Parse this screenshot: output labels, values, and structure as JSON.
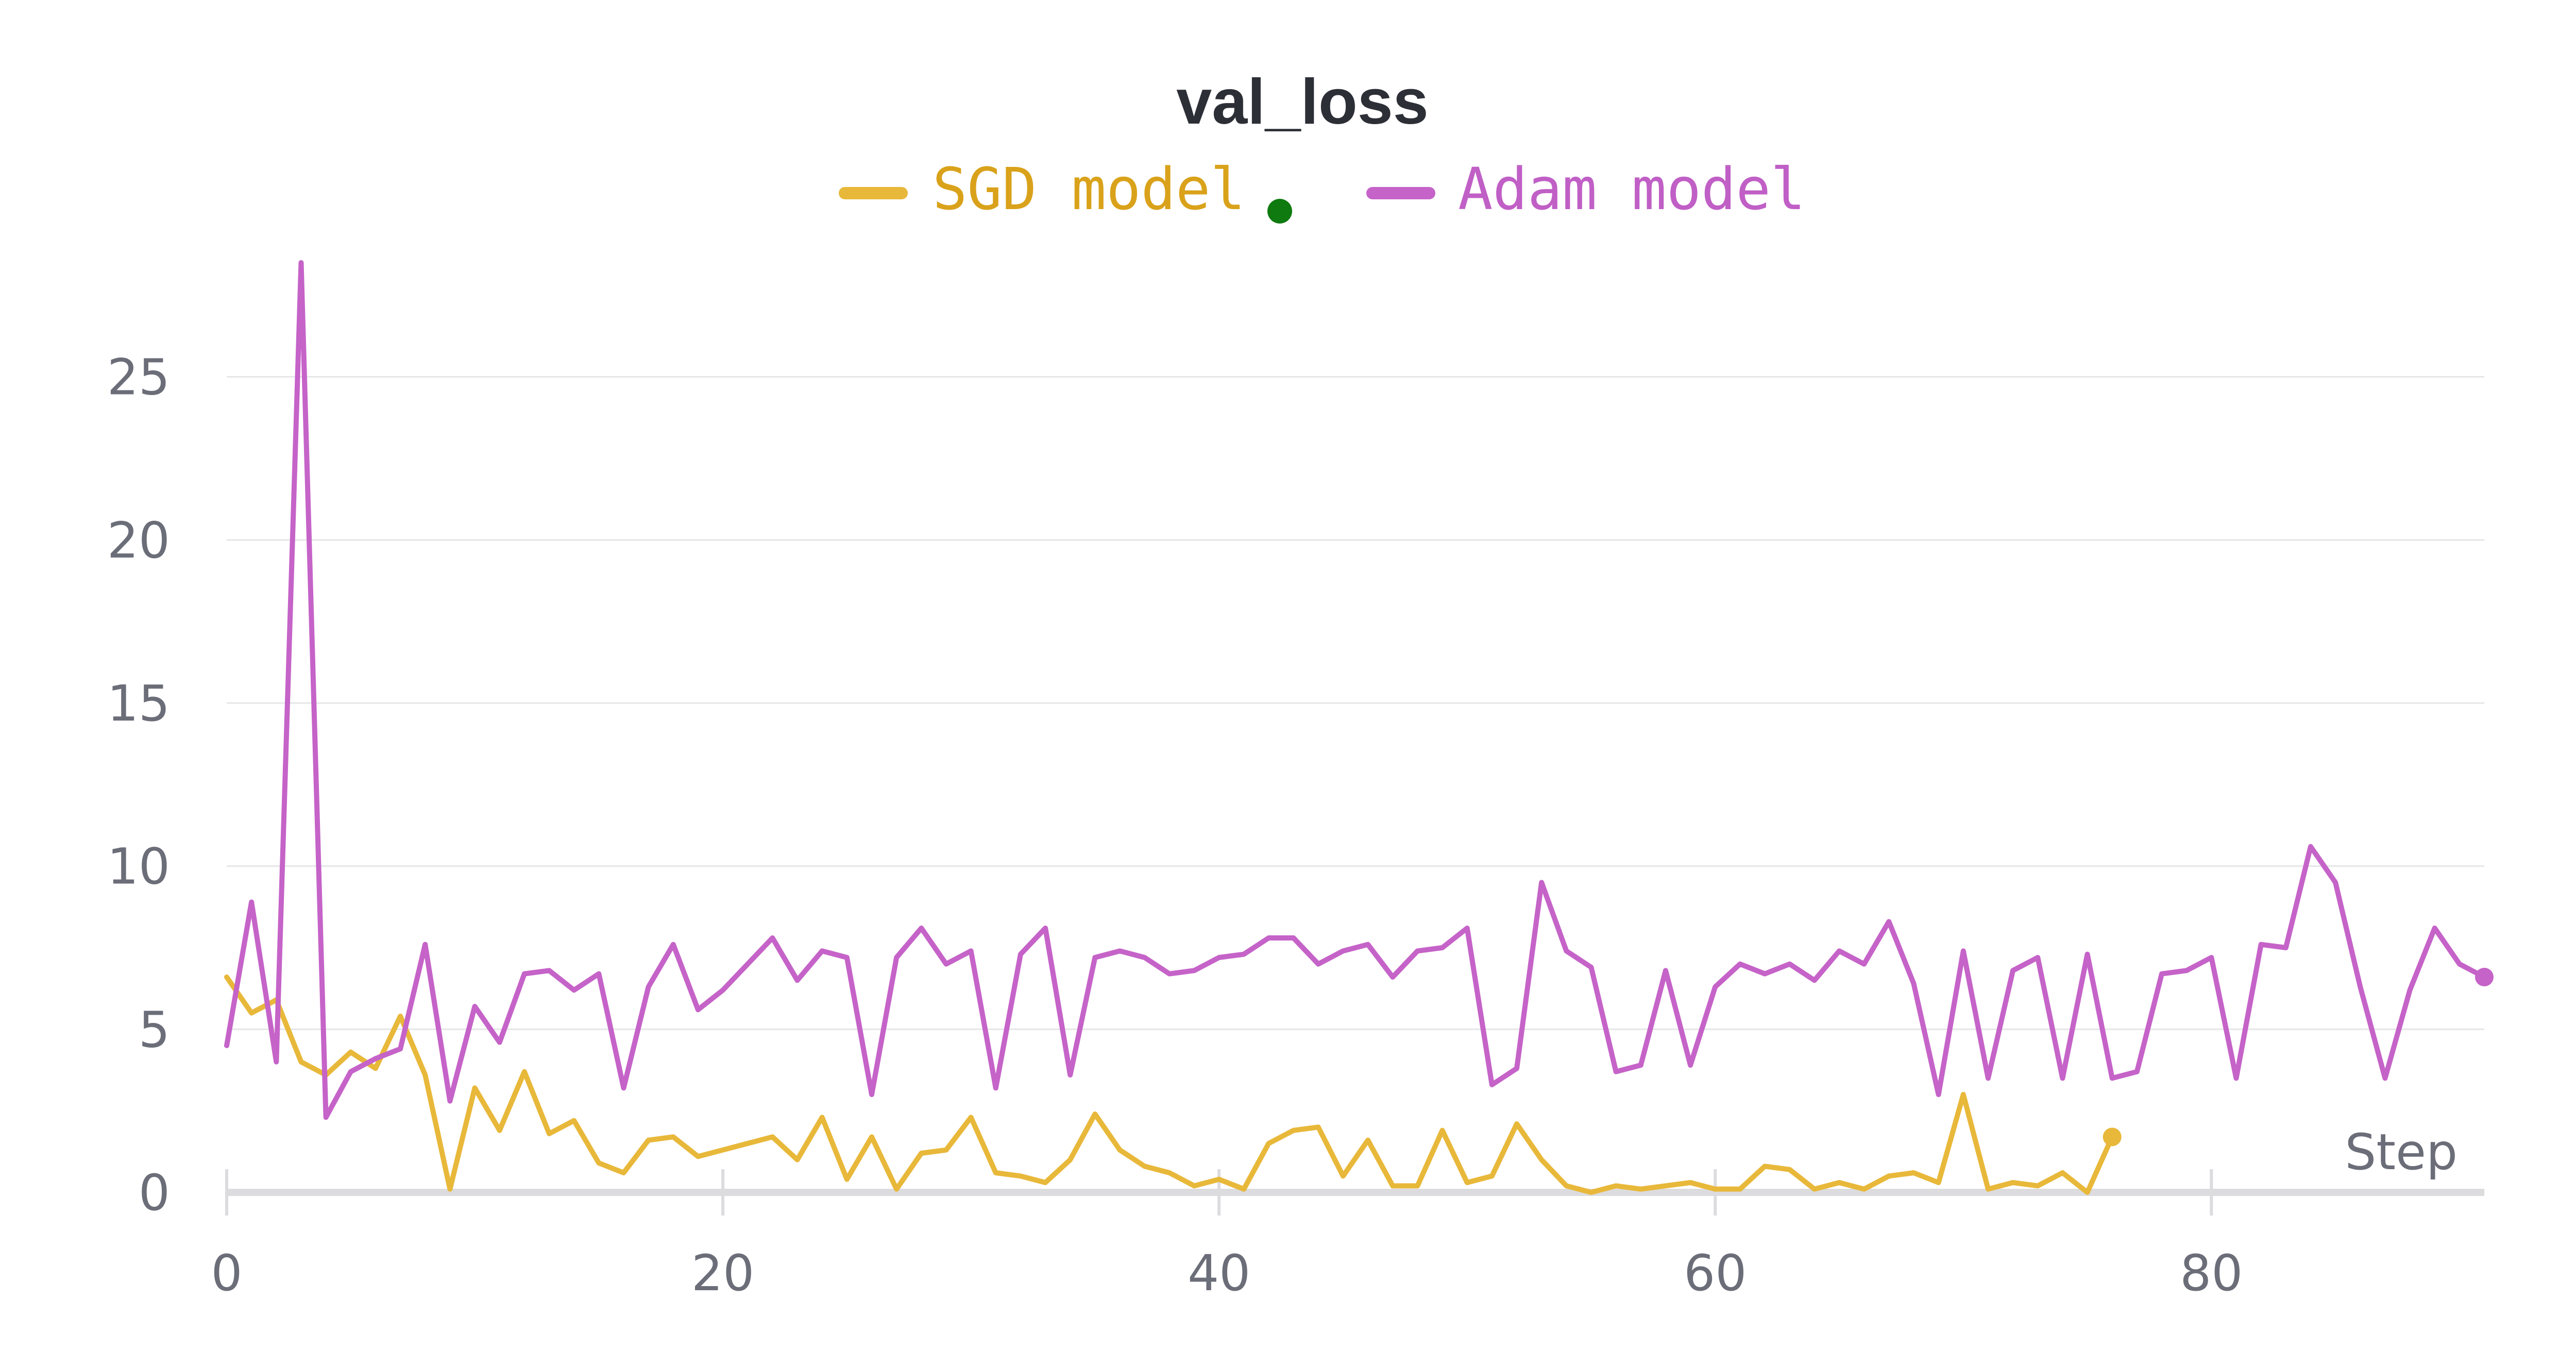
{
  "chart_data": {
    "type": "line",
    "title": "val_loss",
    "xlabel": "Step",
    "ylabel": "",
    "xlim": [
      0,
      91
    ],
    "ylim": [
      0,
      28.5
    ],
    "x_ticks": [
      0,
      20,
      40,
      60,
      80
    ],
    "y_ticks": [
      0,
      5,
      10,
      15,
      20,
      25
    ],
    "grid": true,
    "legend_position": "top-center",
    "series": [
      {
        "name": "SGD model",
        "color": "#e8b83a",
        "label_color": "#d9a21a",
        "values": [
          6.6,
          5.5,
          5.9,
          4.0,
          3.6,
          4.3,
          3.8,
          5.4,
          3.6,
          0.1,
          3.2,
          1.9,
          3.7,
          1.8,
          2.2,
          0.9,
          0.6,
          1.6,
          1.7,
          1.1,
          1.3,
          1.5,
          1.7,
          1.0,
          2.3,
          0.4,
          1.7,
          0.1,
          1.2,
          1.3,
          2.3,
          0.6,
          0.5,
          0.3,
          1.0,
          2.4,
          1.3,
          0.8,
          0.6,
          0.2,
          0.4,
          0.1,
          1.5,
          1.9,
          2.0,
          0.5,
          1.6,
          0.2,
          0.2,
          1.9,
          0.3,
          0.5,
          2.1,
          1.0,
          0.2,
          0.0,
          0.2,
          0.1,
          0.2,
          0.3,
          0.1,
          0.1,
          0.8,
          0.7,
          0.1,
          0.3,
          0.1,
          0.5,
          0.6,
          0.3,
          3.0,
          0.1,
          0.3,
          0.2,
          0.6,
          0.0,
          1.7
        ]
      },
      {
        "name": "Adam model",
        "color": "#c563c8",
        "label_color": "#c05fc6",
        "values": [
          4.5,
          8.9,
          4.0,
          28.5,
          2.3,
          3.7,
          4.1,
          4.4,
          7.6,
          2.8,
          5.7,
          4.6,
          6.7,
          6.8,
          6.2,
          6.7,
          3.2,
          6.3,
          7.6,
          5.6,
          6.2,
          7.0,
          7.8,
          6.5,
          7.4,
          7.2,
          3.0,
          7.2,
          8.1,
          7.0,
          7.4,
          3.2,
          7.3,
          8.1,
          3.6,
          7.2,
          7.4,
          7.2,
          6.7,
          6.8,
          7.2,
          7.3,
          7.8,
          7.8,
          7.0,
          7.4,
          7.6,
          6.6,
          7.4,
          7.5,
          8.1,
          3.3,
          3.8,
          9.5,
          7.4,
          6.9,
          3.7,
          3.9,
          6.8,
          3.9,
          6.3,
          7.0,
          6.7,
          7.0,
          6.5,
          7.4,
          7.0,
          8.3,
          6.4,
          3.0,
          7.4,
          3.5,
          6.8,
          7.2,
          3.5,
          7.3,
          3.5,
          3.7,
          6.7,
          6.8,
          7.2,
          3.5,
          7.6,
          7.5,
          10.6,
          9.5,
          6.3,
          3.5,
          6.2,
          8.1,
          7.0,
          6.6
        ]
      }
    ],
    "status_dot_color": "#0f7a0f"
  }
}
